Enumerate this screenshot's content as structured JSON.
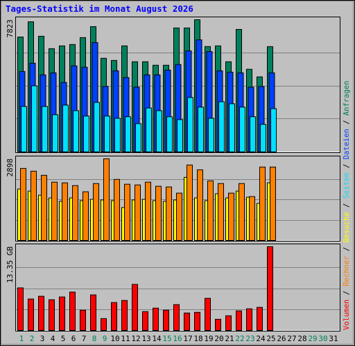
{
  "chart_data": {
    "type": "bar",
    "title": "Tages-Statistik im Monat August 2026",
    "categories": [
      "1",
      "2",
      "3",
      "4",
      "5",
      "6",
      "7",
      "8",
      "9",
      "10",
      "11",
      "12",
      "13",
      "14",
      "15",
      "16",
      "17",
      "18",
      "19",
      "20",
      "21",
      "22",
      "23",
      "24",
      "25",
      "26",
      "27",
      "28",
      "29",
      "30",
      "31"
    ],
    "category_colors": [
      "#00805c",
      "#00805c",
      "#000000",
      "#000000",
      "#000000",
      "#000000",
      "#000000",
      "#00805c",
      "#00805c",
      "#000000",
      "#000000",
      "#000000",
      "#000000",
      "#000000",
      "#00805c",
      "#00805c",
      "#000000",
      "#000000",
      "#000000",
      "#000000",
      "#000000",
      "#00805c",
      "#00805c",
      "#000000",
      "#000000",
      "#000000",
      "#000000",
      "#000000",
      "#00805c",
      "#00805c",
      "#000000"
    ],
    "legend_separator": " / ",
    "panels": [
      {
        "ylim": [
          0,
          7823
        ],
        "yticks": [
          7823
        ],
        "series": [
          {
            "name": "Anfragen",
            "color": "#00805c",
            "values": [
              6800,
              7700,
              6845,
              6110,
              6275,
              6355,
              6765,
              7415,
              5540,
              5415,
              6275,
              5335,
              5335,
              5130,
              5130,
              7335,
              7335,
              7823,
              6235,
              6275,
              5335,
              7250,
              4890,
              4440,
              6230,
              null,
              null,
              null,
              null,
              null,
              null
            ]
          },
          {
            "name": "Dateien",
            "color": "#0040ff",
            "values": [
              4760,
              5250,
              4560,
              4680,
              4110,
              5090,
              5010,
              6470,
              3870,
              4800,
              4400,
              3830,
              4560,
              4560,
              4840,
              5170,
              5980,
              6630,
              5940,
              4800,
              4720,
              4680,
              3830,
              3870,
              4680,
              null,
              null,
              null,
              null,
              null,
              null
            ]
          },
          {
            "name": "Seiten",
            "color": "#00e0ff",
            "values": [
              2690,
              3910,
              2690,
              2200,
              2770,
              2440,
              2120,
              2930,
              2120,
              1990,
              2080,
              1670,
              2600,
              2440,
              2080,
              1910,
              3220,
              2650,
              1990,
              2970,
              2850,
              2650,
              2080,
              1630,
              2560,
              null,
              null,
              null,
              null,
              null,
              null
            ]
          }
        ]
      },
      {
        "ylim": [
          0,
          2898
        ],
        "yticks": [
          2898
        ],
        "series": [
          {
            "name": "Besuche",
            "color": "#ffff00",
            "values": [
              1826,
              1753,
              1607,
              1510,
              1388,
              1510,
              1412,
              1461,
              1437,
              1412,
              1169,
              1437,
              1461,
              1412,
              1388,
              1437,
              2240,
              1510,
              1412,
              1656,
              1510,
              1753,
              1534,
              1315,
              2045,
              null,
              null,
              null,
              null,
              null,
              null
            ]
          },
          {
            "name": "Rechner",
            "color": "#ff8000",
            "values": [
              2557,
              2459,
              2313,
              2070,
              2045,
              1948,
              1729,
              2021,
              2898,
              2167,
              1997,
              1972,
              2070,
              1924,
              1900,
              1680,
              2679,
              2508,
              2118,
              2021,
              1680,
              2021,
              1558,
              2606,
              2606,
              null,
              null,
              null,
              null,
              null,
              null
            ]
          }
        ]
      },
      {
        "ylim": [
          0,
          13.35
        ],
        "yticks": [
          {
            "value": 13.35,
            "label": "13.35 GB"
          }
        ],
        "series": [
          {
            "name": "Volumen",
            "color": "#ff0000",
            "values": [
              6.79,
              5.01,
              5.45,
              4.9,
              5.34,
              6.12,
              3.23,
              5.67,
              1.89,
              4.45,
              4.78,
              7.34,
              3.0,
              3.56,
              3.23,
              4.12,
              2.78,
              2.89,
              5.12,
              1.78,
              2.34,
              3.12,
              3.45,
              3.68,
              13.35,
              null,
              null,
              null,
              null,
              null,
              null
            ]
          }
        ]
      }
    ]
  }
}
